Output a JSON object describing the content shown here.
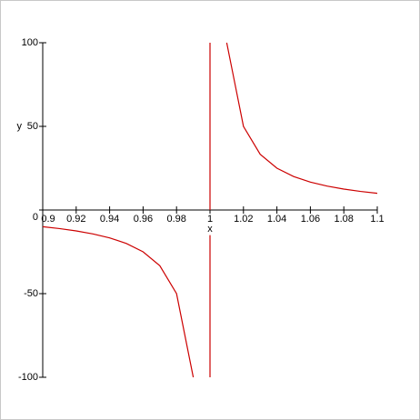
{
  "chart_data": {
    "type": "line",
    "xlabel": "x",
    "ylabel": "y",
    "xlim": [
      0.9,
      1.1
    ],
    "ylim": [
      -100,
      100
    ],
    "xticks": [
      0.9,
      0.92,
      0.94,
      0.96,
      0.98,
      1,
      1.02,
      1.04,
      1.06,
      1.08,
      1.1
    ],
    "yticks": [
      -100,
      -50,
      0,
      50,
      100
    ],
    "series": [
      {
        "color": "#cc0000",
        "x": [
          0.9,
          0.91,
          0.92,
          0.93,
          0.94,
          0.95,
          0.96,
          0.97,
          0.98,
          0.99,
          1,
          1.01,
          1.02,
          1.03,
          1.04,
          1.05,
          1.06,
          1.07,
          1.08,
          1.09,
          1.1
        ],
        "values": [
          -10,
          -11.11,
          -12.5,
          -14.29,
          -16.67,
          -20,
          -25,
          -33.33,
          -50,
          -100,
          null,
          100,
          50,
          33.33,
          25,
          20,
          16.67,
          14.29,
          12.5,
          11.11,
          10
        ]
      },
      {
        "color": "#cc0000",
        "x": [
          1,
          1,
          1,
          1,
          1
        ],
        "values": [
          100,
          0,
          null,
          -15,
          -100
        ]
      }
    ]
  }
}
